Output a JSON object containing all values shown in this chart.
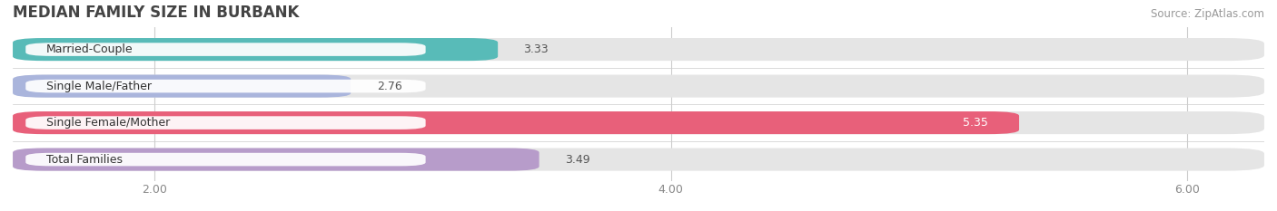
{
  "title": "MEDIAN FAMILY SIZE IN BURBANK",
  "source": "Source: ZipAtlas.com",
  "categories": [
    "Married-Couple",
    "Single Male/Father",
    "Single Female/Mother",
    "Total Families"
  ],
  "values": [
    3.33,
    2.76,
    5.35,
    3.49
  ],
  "bar_colors": [
    "#58bbb8",
    "#aab5dc",
    "#e8607a",
    "#b79cca"
  ],
  "bar_bg_color": "#e5e5e5",
  "xlim_min": 1.45,
  "xlim_max": 6.3,
  "xticks": [
    2.0,
    4.0,
    6.0
  ],
  "title_fontsize": 12,
  "source_fontsize": 8.5,
  "label_fontsize": 9,
  "value_fontsize": 9,
  "bg_color": "#ffffff",
  "bar_height": 0.62,
  "grid_color": "#cccccc",
  "tick_color": "#888888"
}
